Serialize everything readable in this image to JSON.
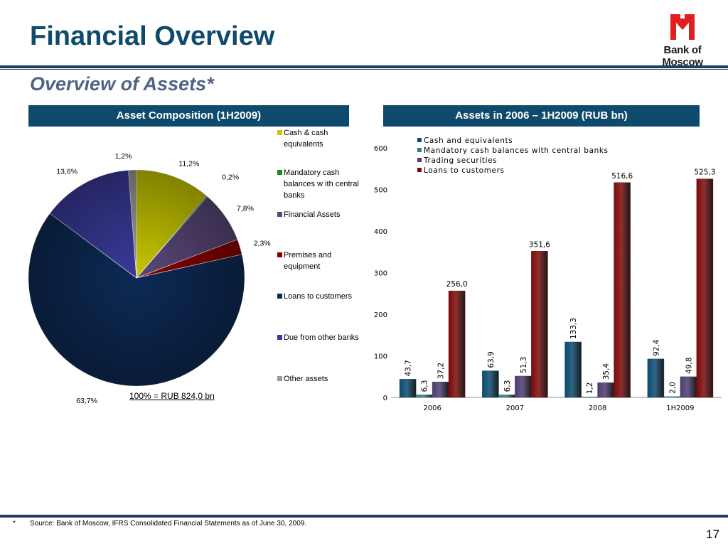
{
  "header": {
    "title": "Financial Overview",
    "subtitle": "Overview of Assets*",
    "logo_text": "Bank of Moscow"
  },
  "left_panel": {
    "title": "Asset Composition (1H2009)",
    "total_label": "100% = RUB 824,0 bn"
  },
  "right_panel": {
    "title": "Assets in 2006 – 1H2009 (RUB bn)"
  },
  "footer": {
    "star": "*",
    "source": "Source: Bank of Moscow, IFRS Consolidated Financial Statements as of June 30, 2009.",
    "page_number": "17"
  },
  "chart_data": [
    {
      "type": "pie",
      "slices": [
        {
          "name": "Cash & cash equivalents",
          "legend": [
            "Cash & cash",
            "equivalents"
          ],
          "value": 11.2,
          "label": "11,2%",
          "color": "#c8c800"
        },
        {
          "name": "Mandatory cash balances with central banks",
          "legend": [
            "Mandatory cash",
            "balances w ith central",
            "banks"
          ],
          "value": 0.2,
          "label": "0,2%",
          "color": "#1a8c1a"
        },
        {
          "name": "Financial Assets",
          "legend": [
            "Financial Assets"
          ],
          "value": 7.8,
          "label": "7,8%",
          "color": "#5a4878"
        },
        {
          "name": "Premises and equipment",
          "legend": [
            "Premises and",
            "equipment"
          ],
          "value": 2.3,
          "label": "2,3%",
          "color": "#8a0000"
        },
        {
          "name": "Loans to customers",
          "legend": [
            "Loans to customers"
          ],
          "value": 63.7,
          "label": "63,7%",
          "color": "#0d2a55"
        },
        {
          "name": "Due from other banks",
          "legend": [
            "Due from other banks"
          ],
          "value": 13.6,
          "label": "13,6%",
          "color": "#3a3a9a"
        },
        {
          "name": "Other assets",
          "legend": [
            "Other assets"
          ],
          "value": 1.2,
          "label": "1,2%",
          "color": "#9a9a9a"
        }
      ]
    },
    {
      "type": "bar",
      "categories": [
        "2006",
        "2007",
        "2008",
        "1H2009"
      ],
      "ylim": [
        0,
        600
      ],
      "yticks": [
        0,
        100,
        200,
        300,
        400,
        500,
        600
      ],
      "series": [
        {
          "name": "Cash and equivalents",
          "values": [
            43.7,
            63.9,
            133.3,
            92.4
          ],
          "labels": [
            "43,7",
            "63,9",
            "133,3",
            "92,4"
          ],
          "color": "#0b4a6e"
        },
        {
          "name": "Mandatory cash balances with central banks",
          "values": [
            6.3,
            6.3,
            1.2,
            2.0
          ],
          "labels": [
            "6,3",
            "6,3",
            "1,2",
            "2,0"
          ],
          "color": "#3a7c84"
        },
        {
          "name": "Trading securities",
          "values": [
            37.2,
            51.3,
            35.4,
            49.8
          ],
          "labels": [
            "37,2",
            "51,3",
            "35,4",
            "49,8"
          ],
          "color": "#4d3d70"
        },
        {
          "name": "Loans to customers",
          "values": [
            256.0,
            351.6,
            516.6,
            525.3
          ],
          "labels": [
            "256,0",
            "351,6",
            "516,6",
            "525,3"
          ],
          "color": "#7a0a0a"
        }
      ]
    }
  ]
}
